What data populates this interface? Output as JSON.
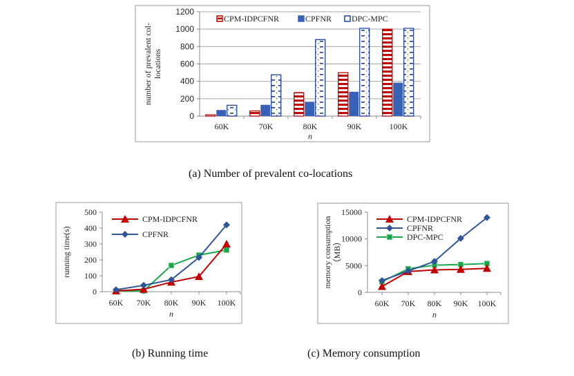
{
  "captions": {
    "a": "(a)    Number of prevalent co-locations",
    "b": "(b)    Running time",
    "c": "(c)  Memory consumption"
  },
  "chart_data": [
    {
      "id": "a",
      "type": "bar",
      "title": "",
      "categories": [
        "60K",
        "70K",
        "80K",
        "90K",
        "100K"
      ],
      "xlabel": "n",
      "ylabel_lines": [
        "number of prevalent col-",
        "locations"
      ],
      "ylabel": "number of prevalent co-locations",
      "ylim": [
        0,
        1200
      ],
      "yticks": [
        0,
        200,
        400,
        600,
        800,
        1000,
        1200
      ],
      "grid": true,
      "legend_position": "top",
      "series": [
        {
          "name": "CPM-IDPCFNR",
          "color": "#c00000",
          "pattern": "horizontal-stripes",
          "values": [
            15,
            60,
            270,
            500,
            1000
          ]
        },
        {
          "name": "CPFNR",
          "color": "#3a62b4",
          "pattern": "solid",
          "values": [
            70,
            130,
            165,
            280,
            385
          ]
        },
        {
          "name": "DPC-MPC",
          "color": "#1e40a0",
          "pattern": "dashed-dots",
          "values": [
            125,
            475,
            880,
            1010,
            1010
          ]
        }
      ]
    },
    {
      "id": "b",
      "type": "line",
      "title": "",
      "categories": [
        "60K",
        "70K",
        "80K",
        "90K",
        "100K"
      ],
      "xlabel": "n",
      "ylabel": "running time(s)",
      "ylim": [
        0,
        500
      ],
      "yticks": [
        0,
        100,
        200,
        300,
        400,
        500
      ],
      "grid": false,
      "legend_position": "top-left",
      "series": [
        {
          "name": "CPM-IDPCFNR",
          "color": "#c00000",
          "marker": "triangle",
          "in_legend": true,
          "values": [
            5,
            15,
            60,
            95,
            300
          ]
        },
        {
          "name": "CPFNR",
          "color": "#2f5597",
          "marker": "diamond",
          "in_legend": true,
          "values": [
            12,
            40,
            75,
            215,
            420
          ]
        },
        {
          "name": "DPC-MPC",
          "color": "#1aa64a",
          "marker": "square",
          "in_legend": false,
          "values": [
            5,
            5,
            165,
            230,
            262
          ]
        }
      ]
    },
    {
      "id": "c",
      "type": "line",
      "title": "",
      "categories": [
        "60K",
        "70K",
        "80K",
        "90K",
        "100K"
      ],
      "xlabel": "n",
      "ylabel_lines": [
        "memory consumption",
        "（MB）"
      ],
      "ylabel": "memory consumption (MB)",
      "ylim": [
        0,
        15000
      ],
      "yticks": [
        0,
        5000,
        10000,
        15000
      ],
      "grid": false,
      "legend_position": "top-left",
      "series": [
        {
          "name": "CPM-IDPCFNR",
          "color": "#c00000",
          "marker": "triangle",
          "in_legend": true,
          "values": [
            1100,
            3900,
            4200,
            4300,
            4500
          ]
        },
        {
          "name": "CPFNR",
          "color": "#2f5597",
          "marker": "diamond",
          "in_legend": true,
          "values": [
            2200,
            4000,
            5800,
            10100,
            14000
          ]
        },
        {
          "name": "DPC-MPC",
          "color": "#1aa64a",
          "marker": "square",
          "in_legend": true,
          "values": [
            2000,
            4400,
            5100,
            5200,
            5400
          ]
        }
      ]
    }
  ]
}
